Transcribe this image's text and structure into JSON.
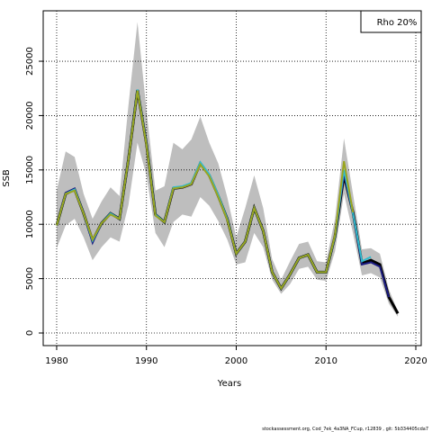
{
  "chart_data": {
    "type": "line",
    "xlabel": "Years",
    "ylabel": "SSB",
    "legend": "Rho 20%",
    "footer": "stockassessment.org, Cod_7ek_4a3NA_FCup, r12839 , git: 5b334405cda7",
    "x": [
      1980,
      1981,
      1982,
      1983,
      1984,
      1985,
      1986,
      1987,
      1988,
      1989,
      1990,
      1991,
      1992,
      1993,
      1994,
      1995,
      1996,
      1997,
      1998,
      1999,
      2000,
      2001,
      2002,
      2003,
      2004,
      2005,
      2006,
      2007,
      2008,
      2009,
      2010,
      2011,
      2012,
      2013,
      2014,
      2015,
      2016,
      2017,
      2018
    ],
    "band": {
      "color": "#bebebe",
      "upper": [
        13100,
        16700,
        16200,
        12800,
        10500,
        12100,
        13400,
        12600,
        21000,
        28600,
        20500,
        13100,
        13500,
        17500,
        16900,
        17800,
        19900,
        17500,
        15600,
        12500,
        8800,
        11500,
        14500,
        11500,
        6800,
        4900,
        6600,
        8200,
        8400,
        6600,
        6500,
        10500,
        17900,
        12800,
        7700,
        7800,
        7300,
        4000,
        2000
      ],
      "lower": [
        7800,
        9900,
        10500,
        8800,
        6700,
        7900,
        8800,
        8400,
        11800,
        17500,
        14500,
        9200,
        7900,
        10200,
        10900,
        10700,
        12500,
        11700,
        10300,
        8600,
        6300,
        6500,
        9200,
        7900,
        4900,
        3600,
        4500,
        5900,
        6100,
        4900,
        4800,
        7500,
        12800,
        9200,
        5300,
        5500,
        5100,
        2700,
        1500
      ]
    },
    "series": [
      {
        "color": "#000000",
        "values": [
          9900,
          12800,
          13200,
          11000,
          8500,
          10100,
          11000,
          10500,
          16000,
          22350,
          17400,
          10900,
          10200,
          13300,
          13400,
          13700,
          15600,
          14500,
          12600,
          10500,
          7300,
          8400,
          11500,
          9400,
          5600,
          4100,
          5400,
          6900,
          7200,
          5600,
          5600,
          8900,
          14500,
          11100,
          6400,
          6700,
          6300,
          3300,
          1800
        ]
      },
      {
        "color": "#1a1a80",
        "values": [
          9900,
          12900,
          13300,
          11000,
          8300,
          10100,
          11000,
          10500,
          16000,
          22350,
          17400,
          10900,
          10200,
          13300,
          13400,
          13700,
          15600,
          14500,
          12600,
          10500,
          7300,
          8400,
          11500,
          9400,
          5600,
          4100,
          5400,
          6900,
          7200,
          5600,
          5600,
          8900,
          14600,
          11000,
          6300,
          6500,
          6100,
          3300,
          null
        ]
      },
      {
        "color": "#33bbcc",
        "values": [
          9900,
          12800,
          13200,
          11000,
          8500,
          10100,
          11000,
          10500,
          16000,
          22400,
          17400,
          10900,
          10200,
          13400,
          13500,
          13800,
          15700,
          14600,
          12700,
          10500,
          7300,
          8400,
          11500,
          9400,
          5600,
          4100,
          5400,
          6900,
          7200,
          5600,
          5600,
          8900,
          15000,
          11000,
          6600,
          7000,
          null,
          null,
          null
        ]
      },
      {
        "color": "#9aa520",
        "values": [
          9900,
          12800,
          13100,
          11000,
          8600,
          10100,
          10900,
          10500,
          16000,
          22300,
          17300,
          10800,
          10200,
          13300,
          13400,
          13700,
          15500,
          14400,
          12500,
          10400,
          7300,
          8400,
          11500,
          9400,
          5600,
          4100,
          5400,
          6900,
          7200,
          5600,
          5600,
          9000,
          15800,
          11100,
          null,
          null,
          null,
          null,
          null
        ]
      }
    ],
    "xlim": [
      1978.5,
      2020.6
    ],
    "ylim": [
      -1160,
      29640
    ],
    "xticks": [
      1980,
      1990,
      2000,
      2010,
      2020
    ],
    "yticks": [
      0,
      5000,
      10000,
      15000,
      20000,
      25000
    ],
    "grid": true
  }
}
